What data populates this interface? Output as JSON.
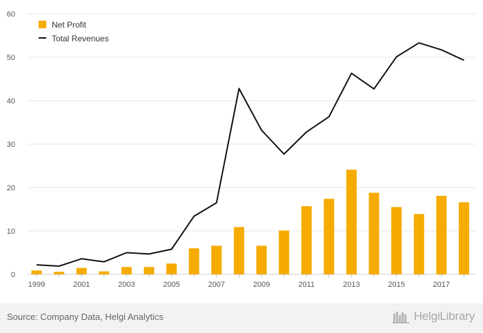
{
  "chart_data": {
    "type": "bar",
    "x": [
      "1999",
      "2000",
      "2001",
      "2002",
      "2003",
      "2004",
      "2005",
      "2006",
      "2007",
      "2008",
      "2009",
      "2010",
      "2011",
      "2012",
      "2013",
      "2014",
      "2015",
      "2016",
      "2017",
      "2018"
    ],
    "x_tick_labels": [
      "1999",
      "2001",
      "2003",
      "2005",
      "2007",
      "2009",
      "2011",
      "2013",
      "2015",
      "2017"
    ],
    "ylim": [
      0,
      60
    ],
    "y_ticks": [
      0,
      10,
      20,
      30,
      40,
      50,
      60
    ],
    "grid": "horizontal",
    "legend_position": "top-left",
    "series": [
      {
        "name": "Net Profit",
        "type": "bar",
        "color": "#f5ab00",
        "values": [
          0.9,
          0.6,
          1.5,
          0.7,
          1.7,
          1.7,
          2.5,
          6.0,
          6.6,
          10.9,
          6.6,
          10.1,
          15.7,
          17.4,
          24.1,
          18.8,
          15.5,
          13.9,
          18.1,
          16.6
        ]
      },
      {
        "name": "Total Revenues",
        "type": "line",
        "color": "#111111",
        "values": [
          2.2,
          1.9,
          3.6,
          2.9,
          5.0,
          4.7,
          5.8,
          13.4,
          16.5,
          42.8,
          33.2,
          27.7,
          32.8,
          36.3,
          46.3,
          42.7,
          50.1,
          53.3,
          51.7,
          49.3
        ]
      }
    ]
  },
  "footer": {
    "source": "Source: Company Data, Helgi Analytics",
    "brand": "HelgiLibrary"
  }
}
